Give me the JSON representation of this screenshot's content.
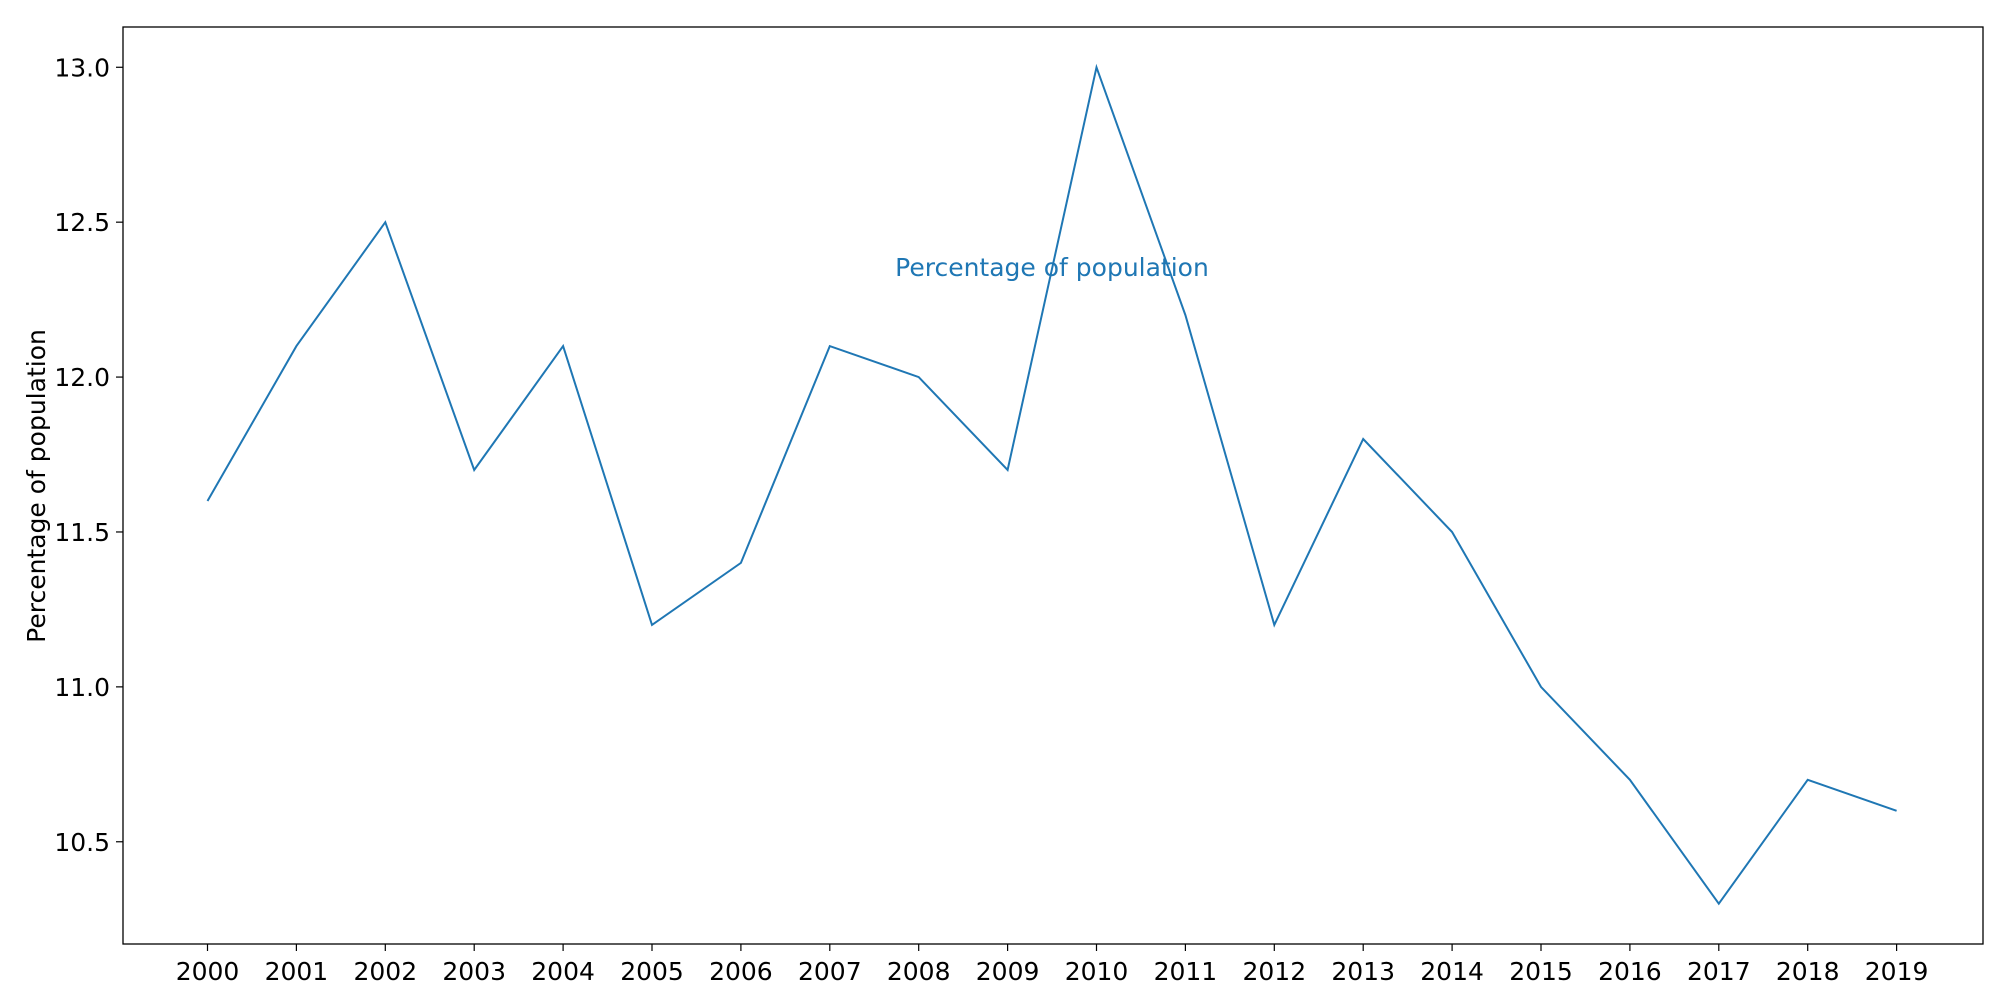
{
  "chart_data": {
    "type": "line",
    "title": "",
    "xlabel": "",
    "ylabel": "Percentage of population",
    "annotation": "Percentage of population",
    "x": [
      "2000",
      "2001",
      "2002",
      "2003",
      "2004",
      "2005",
      "2006",
      "2007",
      "2008",
      "2009",
      "2010",
      "2011",
      "2012",
      "2013",
      "2014",
      "2015",
      "2016",
      "2017",
      "2018",
      "2019"
    ],
    "series": [
      {
        "values": [
          11.6,
          12.1,
          12.5,
          11.7,
          12.1,
          11.2,
          11.4,
          12.1,
          12.0,
          11.7,
          13.0,
          12.2,
          11.2,
          11.8,
          11.5,
          11.0,
          10.7,
          10.3,
          10.7,
          10.6
        ],
        "color": "#1f77b4"
      }
    ],
    "yticks": [
      "10.5",
      "11.0",
      "11.5",
      "12.0",
      "12.5",
      "13.0"
    ],
    "ylim": [
      10.17,
      13.13
    ],
    "grid": false,
    "legend": "none"
  }
}
